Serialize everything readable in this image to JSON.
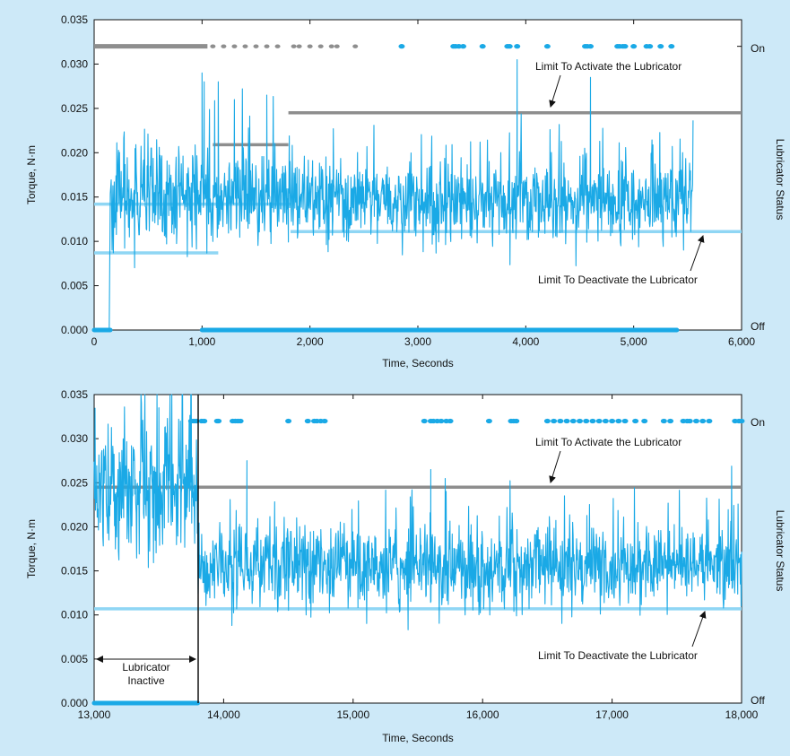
{
  "chart_data": [
    {
      "type": "line",
      "xlabel": "Time, Seconds",
      "ylabel": "Torque, N·m",
      "y2label": "Lubricator Status",
      "xlim": [
        0,
        6000
      ],
      "ylim": [
        0,
        0.035
      ],
      "xticks": [
        "0",
        "1,000",
        "2,000",
        "3,000",
        "4,000",
        "5,000",
        "6,000"
      ],
      "xtick_values": [
        0,
        1000,
        2000,
        3000,
        4000,
        5000,
        6000
      ],
      "yticks": [
        "0.000",
        "0.005",
        "0.010",
        "0.015",
        "0.020",
        "0.025",
        "0.030",
        "0.035"
      ],
      "ytick_values": [
        0,
        0.005,
        0.01,
        0.015,
        0.02,
        0.025,
        0.03,
        0.035
      ],
      "status_labels": {
        "on": "On",
        "off": "Off"
      },
      "status_levels": {
        "on": 0.032,
        "off": 0.0
      },
      "series": [
        {
          "name": "Torque",
          "color": "#1aa9e6",
          "segments": [
            {
              "t0": 0,
              "t1": 140,
              "mean": 0.0,
              "sd": 0.0
            },
            {
              "t0": 150,
              "t1": 1000,
              "mean": 0.0148,
              "sd": 0.0032
            },
            {
              "t0": 1000,
              "t1": 1800,
              "mean": 0.0152,
              "sd": 0.003
            },
            {
              "t0": 1800,
              "t1": 5550,
              "mean": 0.0145,
              "sd": 0.0027
            }
          ],
          "peaks": [
            [
              1000,
              0.029
            ],
            [
              1020,
              0.028
            ],
            [
              1150,
              0.028
            ],
            [
              3920,
              0.0305
            ],
            [
              4600,
              0.0285
            ],
            [
              1300,
              0.026
            ],
            [
              1600,
              0.0265
            ]
          ]
        }
      ],
      "limits": {
        "activate": {
          "label": "Limit To Activate the Lubricator",
          "color": "#8e8e8e",
          "segments": [
            {
              "x0": 1100,
              "x1": 1800,
              "y": 0.0209
            },
            {
              "x0": 1800,
              "x1": 6000,
              "y": 0.0245
            }
          ]
        },
        "deactivate": {
          "label": "Limit To Deactivate the Lubricator",
          "color": "#8fd6f4",
          "segments": [
            {
              "x0": 0,
              "x1": 1150,
              "y": 0.0087
            },
            {
              "x0": 0,
              "x1": 1820,
              "y": 0.0142
            },
            {
              "x0": 1820,
              "x1": 6000,
              "y": 0.0111
            }
          ]
        }
      },
      "status": {
        "off_ranges": [
          [
            0,
            150
          ],
          [
            1000,
            5400
          ]
        ],
        "on_gray_ranges": [
          [
            0,
            1050
          ]
        ],
        "on_gray_points": [
          1100,
          1200,
          1300,
          1400,
          1500,
          1600,
          1700,
          1850,
          1900,
          2000,
          2100,
          2200,
          2250,
          2420
        ],
        "on_blue_points": [
          2850,
          3330,
          3350,
          3380,
          3420,
          3600,
          3830,
          3850,
          3920,
          4200,
          4550,
          4570,
          4600,
          4850,
          4870,
          4900,
          4920,
          5000,
          5120,
          5150,
          5250,
          5350
        ]
      },
      "annotations": [
        {
          "text": "Limit To Activate the Lubricator",
          "target": [
            4250,
            0.0245
          ]
        },
        {
          "text": "Limit To Deactivate the Lubricator",
          "target": [
            5600,
            0.0111
          ]
        }
      ]
    },
    {
      "type": "line",
      "xlabel": "Time, Seconds",
      "ylabel": "Torque, N·m",
      "y2label": "Lubricator Status",
      "xlim": [
        13000,
        18000
      ],
      "ylim": [
        0,
        0.035
      ],
      "xticks": [
        "13,000",
        "14,000",
        "15,000",
        "16,000",
        "17,000",
        "18,000"
      ],
      "xtick_values": [
        13000,
        14000,
        15000,
        16000,
        17000,
        18000
      ],
      "yticks": [
        "0.000",
        "0.005",
        "0.010",
        "0.015",
        "0.020",
        "0.025",
        "0.030",
        "0.035"
      ],
      "ytick_values": [
        0,
        0.005,
        0.01,
        0.015,
        0.02,
        0.025,
        0.03,
        0.035
      ],
      "status_labels": {
        "on": "On",
        "off": "Off"
      },
      "status_levels": {
        "on": 0.032,
        "off": 0.0
      },
      "series": [
        {
          "name": "Torque",
          "color": "#1aa9e6",
          "segments": [
            {
              "t0": 13000,
              "t1": 13800,
              "mean": 0.0245,
              "sd": 0.0045
            },
            {
              "t0": 13800,
              "t1": 18000,
              "mean": 0.0155,
              "sd": 0.0027
            }
          ],
          "peaks": [
            [
              13600,
              0.035
            ],
            [
              13680,
              0.035
            ],
            [
              13750,
              0.035
            ],
            [
              14180,
              0.0275
            ],
            [
              15600,
              0.0265
            ],
            [
              13500,
              0.0335
            ]
          ]
        }
      ],
      "limits": {
        "activate": {
          "label": "Limit To Activate the Lubricator",
          "color": "#8e8e8e",
          "segments": [
            {
              "x0": 13000,
              "x1": 18000,
              "y": 0.0245
            }
          ]
        },
        "deactivate": {
          "label": "Limit To Deactivate the Lubricator",
          "color": "#8fd6f4",
          "segments": [
            {
              "x0": 13000,
              "x1": 18000,
              "y": 0.0107
            }
          ]
        }
      },
      "status": {
        "off_ranges": [
          [
            13000,
            13800
          ]
        ],
        "on_gray_ranges": [],
        "on_gray_points": [],
        "on_blue_points": [
          13750,
          13770,
          13790,
          13830,
          13850,
          13950,
          13960,
          14070,
          14090,
          14110,
          14130,
          14500,
          14650,
          14700,
          14720,
          14750,
          14780,
          15550,
          15600,
          15620,
          15650,
          15680,
          15720,
          15750,
          16050,
          16220,
          16240,
          16260,
          16500,
          16550,
          16600,
          16650,
          16700,
          16750,
          16800,
          16850,
          16900,
          16950,
          17000,
          17050,
          17100,
          17180,
          17250,
          17400,
          17450,
          17550,
          17580,
          17600,
          17650,
          17700,
          17750,
          17950,
          17980,
          18000
        ]
      },
      "annotations": [
        {
          "text": "Limit To Activate the Lubricator",
          "target": [
            16450,
            0.0245
          ]
        },
        {
          "text": "Limit To Deactivate the Lubricator",
          "target": [
            17700,
            0.0107
          ]
        }
      ],
      "inactive_region": {
        "x0": 13000,
        "x1": 13800,
        "label_line1": "Lubricator",
        "label_line2": "Inactive"
      }
    }
  ]
}
